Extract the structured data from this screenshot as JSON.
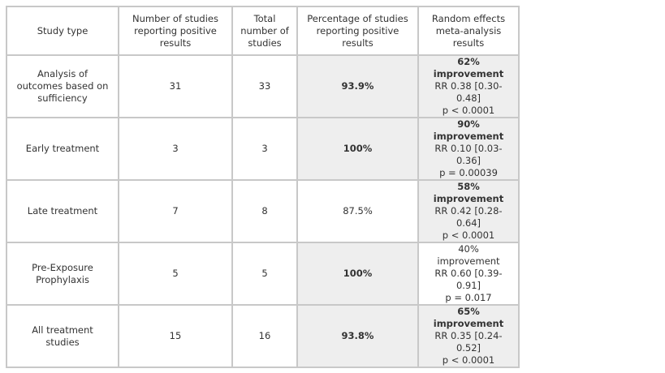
{
  "table": {
    "header": [
      "Study type",
      "Number of studies reporting positive results",
      "Total number of studies",
      "Percentage of studies reporting positive results",
      "Random effects meta-analysis results"
    ],
    "rows": [
      [
        "Analysis of outcomes based on sufficiency",
        "31",
        "33",
        "93.9%",
        [
          "62% improvement",
          "RR 0.38 [0.30-0.48]",
          "p < 0.0001"
        ]
      ],
      [
        "Early treatment",
        "3",
        "3",
        "100%",
        [
          "90% improvement",
          "RR 0.10 [0.03-0.36]",
          "p = 0.00039"
        ]
      ],
      [
        "Late treatment",
        "7",
        "8",
        "87.5%",
        [
          "58% improvement",
          "RR 0.42 [0.28-0.64]",
          "p < 0.0001"
        ]
      ],
      [
        "Pre-Exposure Prophylaxis",
        "5",
        "5",
        "100%",
        [
          "40% improvement",
          "RR 0.60 [0.39-0.91]",
          "p = 0.017"
        ]
      ],
      [
        "All treatment studies",
        "15",
        "16",
        "93.8%",
        [
          "65% improvement",
          "RR 0.35 [0.24-0.52]",
          "p < 0.0001"
        ]
      ]
    ]
  }
}
